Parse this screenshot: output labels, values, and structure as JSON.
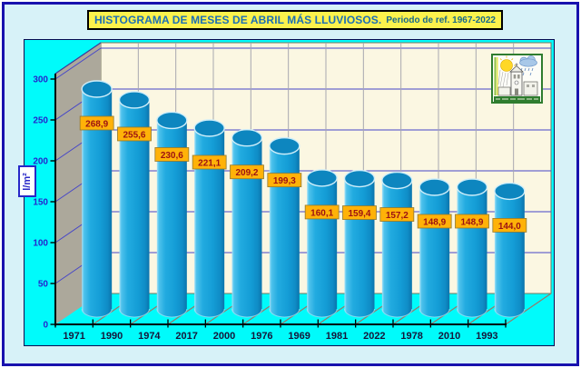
{
  "title": {
    "main": "HISTOGRAMA DE MESES DE ABRIL MÁS LLUVIOSOS.",
    "sub": "Periodo de ref. 1967-2022"
  },
  "chart_data": {
    "type": "bar",
    "style": "3d-cylinders",
    "title": "HISTOGRAMA DE MESES DE ABRIL MÁS LLUVIOSOS.",
    "subtitle": "Periodo de ref. 1967-2022",
    "ylabel": "l/m²",
    "xlabel": "",
    "categories": [
      "1971",
      "1990",
      "1974",
      "2017",
      "2000",
      "1976",
      "1969",
      "1981",
      "2022",
      "1978",
      "2010",
      "1993"
    ],
    "values": [
      268.9,
      255.6,
      230.6,
      221.1,
      209.2,
      199.3,
      160.1,
      159.4,
      157.2,
      148.9,
      148.9,
      144.0
    ],
    "value_labels": [
      "268,9",
      "255,6",
      "230,6",
      "221,1",
      "209,2",
      "199,3",
      "160,1",
      "159,4",
      "157,2",
      "148,9",
      "148,9",
      "144,0"
    ],
    "ylim": [
      0,
      300
    ],
    "yticks": [
      0,
      50,
      100,
      150,
      200,
      250,
      300
    ],
    "grid": true,
    "legend": null,
    "colors": {
      "bar": "#18a0d8",
      "bar_top": "#0d86bf",
      "value_label_bg": "#ffb208",
      "value_label_text": "#9c1212",
      "plot_bg": "#00fbfb",
      "back_wall": "#fbf7e2",
      "side_wall": "#aca89b",
      "gridline": "#4646c8",
      "column_line": "#a8a8b0",
      "floor_line": "#9a7668",
      "axis": "#000000",
      "ytick_text": "#2525cd",
      "xtick_text": "#16163a",
      "title_bg": "#fcf24c",
      "title_text": "#1b6fb5",
      "subtitle_text": "#17698a"
    }
  },
  "icons": {
    "logo": "weather-sketch-logo"
  }
}
